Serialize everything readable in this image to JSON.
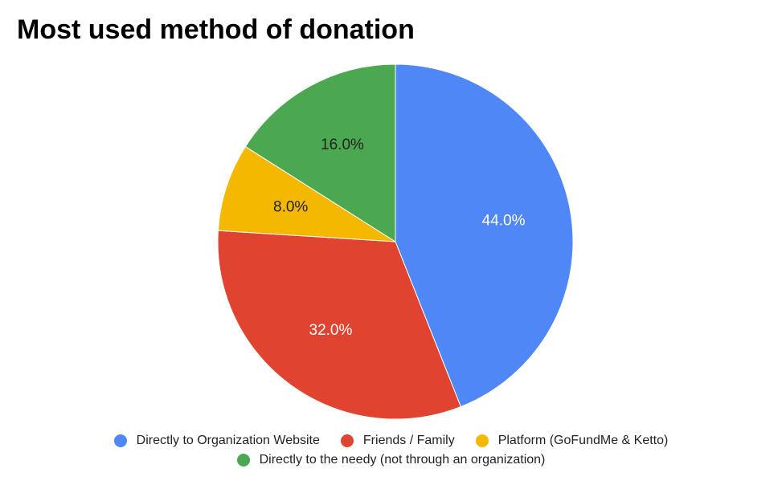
{
  "chart_data": {
    "type": "pie",
    "title": "Most used method of donation",
    "slices": [
      {
        "label": "Directly to Organization Website",
        "value": 44.0,
        "display": "44.0%",
        "color": "#5087F6",
        "text_color": "#ffffff"
      },
      {
        "label": "Friends / Family",
        "value": 32.0,
        "display": "32.0%",
        "color": "#E04430",
        "text_color": "#ffffff"
      },
      {
        "label": "Platform (GoFundMe & Ketto)",
        "value": 8.0,
        "display": "8.0%",
        "color": "#F4B800",
        "text_color": "#222222"
      },
      {
        "label": "Directly to the needy (not through an organization)",
        "value": 16.0,
        "display": "16.0%",
        "color": "#4BA851",
        "text_color": "#222222"
      }
    ],
    "legend_position": "bottom"
  }
}
